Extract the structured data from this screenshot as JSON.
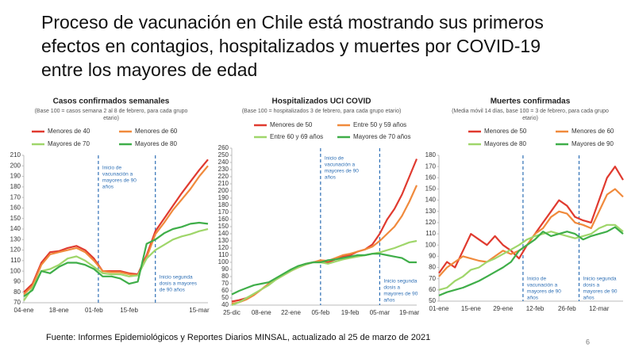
{
  "title": [
    "Proceso de vacunación en Chile está mostrando sus primeros",
    "efectos en contagios, hospitalizados y muertes por COVID-19",
    "entre los mayores de edad"
  ],
  "source": "Fuente: Informes Epidemiológicos y Reportes Diarios MINSAL, actualizado al 25 de marzo de 2021",
  "page_number": "6",
  "chart_data": [
    {
      "type": "line",
      "title": "Casos confirmados semanales",
      "subtitle": [
        "(Base 100 = casos semana 2 al 8 de febrero, para cada grupo",
        "etario)"
      ],
      "categories": [
        "04-ene",
        null,
        null,
        null,
        "18-ene",
        null,
        null,
        null,
        "01-feb",
        null,
        null,
        null,
        "15-feb",
        null,
        null,
        null,
        null,
        null,
        null,
        null,
        "15-mar",
        null
      ],
      "ylim": [
        70,
        210
      ],
      "yticks": [
        70,
        80,
        90,
        100,
        110,
        120,
        130,
        140,
        150,
        160,
        170,
        180,
        190,
        200,
        210
      ],
      "series": [
        {
          "name": "Menores de 40",
          "color": "#e03a2f",
          "values": [
            80,
            88,
            108,
            118,
            119,
            122,
            124,
            120,
            112,
            100,
            100,
            100,
            98,
            97,
            115,
            138,
            150,
            162,
            174,
            185,
            196,
            206
          ]
        },
        {
          "name": "Menores de 60",
          "color": "#f08a3c",
          "values": [
            78,
            86,
            106,
            116,
            118,
            120,
            122,
            118,
            110,
            100,
            99,
            99,
            97,
            96,
            113,
            135,
            146,
            158,
            168,
            178,
            190,
            200
          ]
        },
        {
          "name": "Mayores de 70",
          "color": "#9fd66a",
          "values": [
            72,
            84,
            100,
            102,
            106,
            112,
            114,
            110,
            104,
            98,
            97,
            97,
            95,
            96,
            112,
            120,
            125,
            130,
            133,
            135,
            138,
            140
          ]
        },
        {
          "name": "Mayores de 80",
          "color": "#3fae49",
          "values": [
            76,
            82,
            100,
            98,
            104,
            108,
            108,
            106,
            102,
            95,
            95,
            93,
            88,
            90,
            126,
            130,
            136,
            140,
            142,
            145,
            146,
            145
          ]
        }
      ],
      "annotations": [
        [
          "Inicio de",
          "vacunación a",
          "mayores de 90",
          "años"
        ],
        [
          "Inicio segunda",
          "dosis a mayores",
          "de 90 años"
        ]
      ]
    },
    {
      "type": "line",
      "title": "Hospitalizados UCI COVID",
      "subtitle": [
        "(Base 100 = hospitalizados 3 de febrero, para cada grupo etario)"
      ],
      "categories": [
        "25-dic",
        null,
        null,
        null,
        "08-ene",
        null,
        null,
        null,
        "22-ene",
        null,
        null,
        null,
        "05-feb",
        null,
        null,
        null,
        "19-feb",
        null,
        null,
        null,
        "05-mar",
        null,
        null,
        null,
        "19-mar",
        null
      ],
      "ylim": [
        40,
        260
      ],
      "yticks": [
        40,
        50,
        60,
        70,
        80,
        90,
        100,
        110,
        120,
        130,
        140,
        150,
        160,
        170,
        180,
        190,
        200,
        210,
        220,
        230,
        240,
        250,
        260
      ],
      "series": [
        {
          "name": "Menores de 50",
          "color": "#e03a2f",
          "values": [
            45,
            47,
            50,
            55,
            62,
            70,
            76,
            82,
            88,
            93,
            97,
            100,
            102,
            100,
            104,
            108,
            110,
            115,
            118,
            125,
            140,
            160,
            175,
            195,
            220,
            245
          ]
        },
        {
          "name": "Entre 50 y 59 años",
          "color": "#f08a3c",
          "values": [
            42,
            44,
            48,
            54,
            62,
            70,
            76,
            82,
            88,
            93,
            98,
            100,
            103,
            102,
            106,
            110,
            112,
            115,
            118,
            122,
            130,
            140,
            150,
            165,
            185,
            208
          ]
        },
        {
          "name": "Entre 60 y 69 años",
          "color": "#9fd66a",
          "values": [
            40,
            44,
            50,
            56,
            62,
            68,
            76,
            82,
            88,
            93,
            97,
            100,
            100,
            98,
            101,
            104,
            106,
            108,
            110,
            112,
            114,
            117,
            120,
            124,
            128,
            130
          ]
        },
        {
          "name": "Mayores de 70 años",
          "color": "#3fae49",
          "values": [
            55,
            60,
            64,
            68,
            70,
            72,
            78,
            84,
            90,
            95,
            98,
            100,
            100,
            103,
            104,
            106,
            108,
            110,
            110,
            112,
            112,
            110,
            108,
            106,
            100,
            100
          ]
        }
      ],
      "annotations": [
        [
          "Inicio de",
          "vacunación a",
          "mayores de 90",
          "años"
        ],
        [
          "Inicio segunda",
          "dosis a",
          "mayores de 90",
          "años"
        ]
      ]
    },
    {
      "type": "line",
      "title": "Muertes confirmadas",
      "subtitle": [
        "(Media móvil 14 días, base 100 = 3 de febrero, para cada grupo",
        "etario)"
      ],
      "categories": [
        "01-ene",
        null,
        null,
        null,
        "15-ene",
        null,
        null,
        null,
        "29-ene",
        null,
        null,
        null,
        "12-feb",
        null,
        null,
        null,
        "26-feb",
        null,
        null,
        null,
        "12-mar",
        null,
        null,
        null
      ],
      "ylim": [
        50,
        180
      ],
      "yticks": [
        50,
        60,
        70,
        80,
        90,
        100,
        110,
        120,
        130,
        140,
        150,
        160,
        170,
        180
      ],
      "series": [
        {
          "name": "Menores de 50",
          "color": "#e03a2f",
          "values": [
            75,
            85,
            80,
            95,
            110,
            105,
            100,
            108,
            100,
            95,
            88,
            100,
            110,
            120,
            130,
            140,
            135,
            125,
            122,
            120,
            140,
            160,
            170,
            158
          ]
        },
        {
          "name": "Menores de 60",
          "color": "#f08a3c",
          "values": [
            72,
            80,
            85,
            90,
            88,
            86,
            85,
            90,
            95,
            92,
            95,
            100,
            110,
            115,
            125,
            130,
            128,
            120,
            118,
            115,
            130,
            145,
            150,
            143
          ]
        },
        {
          "name": "Mayores de 80",
          "color": "#9fd66a",
          "values": [
            60,
            62,
            68,
            72,
            78,
            80,
            85,
            88,
            92,
            96,
            100,
            105,
            108,
            110,
            112,
            110,
            108,
            106,
            108,
            110,
            115,
            118,
            118,
            112
          ]
        },
        {
          "name": "Mayores de 90",
          "color": "#3fae49",
          "values": [
            55,
            58,
            60,
            62,
            65,
            68,
            72,
            76,
            80,
            85,
            95,
            100,
            105,
            112,
            108,
            110,
            112,
            110,
            105,
            108,
            110,
            112,
            116,
            110
          ]
        }
      ],
      "annotations": [
        [
          "Inicio de",
          "vacunación a",
          "mayores de 90",
          "años"
        ],
        [
          "Inicio segunda",
          "dosis a",
          "mayores de 90",
          "años"
        ]
      ]
    }
  ]
}
